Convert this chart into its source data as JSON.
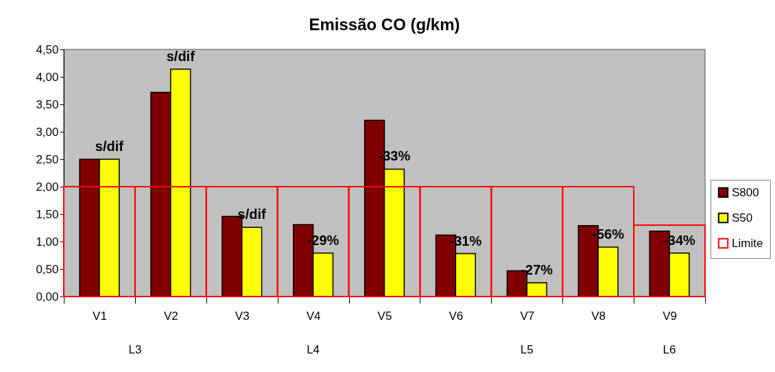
{
  "chart_data": {
    "type": "bar",
    "title": "Emissão CO (g/km)",
    "categories": [
      "V1",
      "V2",
      "V3",
      "V4",
      "V5",
      "V6",
      "V7",
      "V8",
      "V9"
    ],
    "series": [
      {
        "name": "S800",
        "color": "#800000",
        "values": [
          2.5,
          3.72,
          1.46,
          1.31,
          3.21,
          1.12,
          0.47,
          1.29,
          1.19
        ]
      },
      {
        "name": "S50",
        "color": "#ffff00",
        "values": [
          2.5,
          4.14,
          1.26,
          0.79,
          2.32,
          0.78,
          0.25,
          0.9,
          0.79
        ]
      },
      {
        "name": "Limite",
        "type": "bar",
        "color": "#ff0000",
        "values": [
          2.0,
          2.0,
          2.0,
          2.0,
          2.0,
          2.0,
          2.0,
          2.0,
          1.3
        ]
      }
    ],
    "ylim": [
      0,
      4.5
    ],
    "yticks": [
      {
        "value": 0,
        "label": "0,00"
      },
      {
        "value": 0.5,
        "label": "0,50"
      },
      {
        "value": 1,
        "label": "1,00"
      },
      {
        "value": 1.5,
        "label": "1,50"
      },
      {
        "value": 2,
        "label": "2,00"
      },
      {
        "value": 2.5,
        "label": "2,50"
      },
      {
        "value": 3,
        "label": "3,00"
      },
      {
        "value": 3.5,
        "label": "3,50"
      },
      {
        "value": 4,
        "label": "4,00"
      },
      {
        "value": 4.5,
        "label": "4,50"
      }
    ],
    "annotations": [
      "s/dif",
      "s/dif",
      "s/dif",
      "-29%",
      "-33%",
      "-31%",
      "-27%",
      "-56%",
      "-34%",
      "L3",
      "L4",
      "L5",
      "L6"
    ],
    "legend": "right",
    "grid": false
  }
}
